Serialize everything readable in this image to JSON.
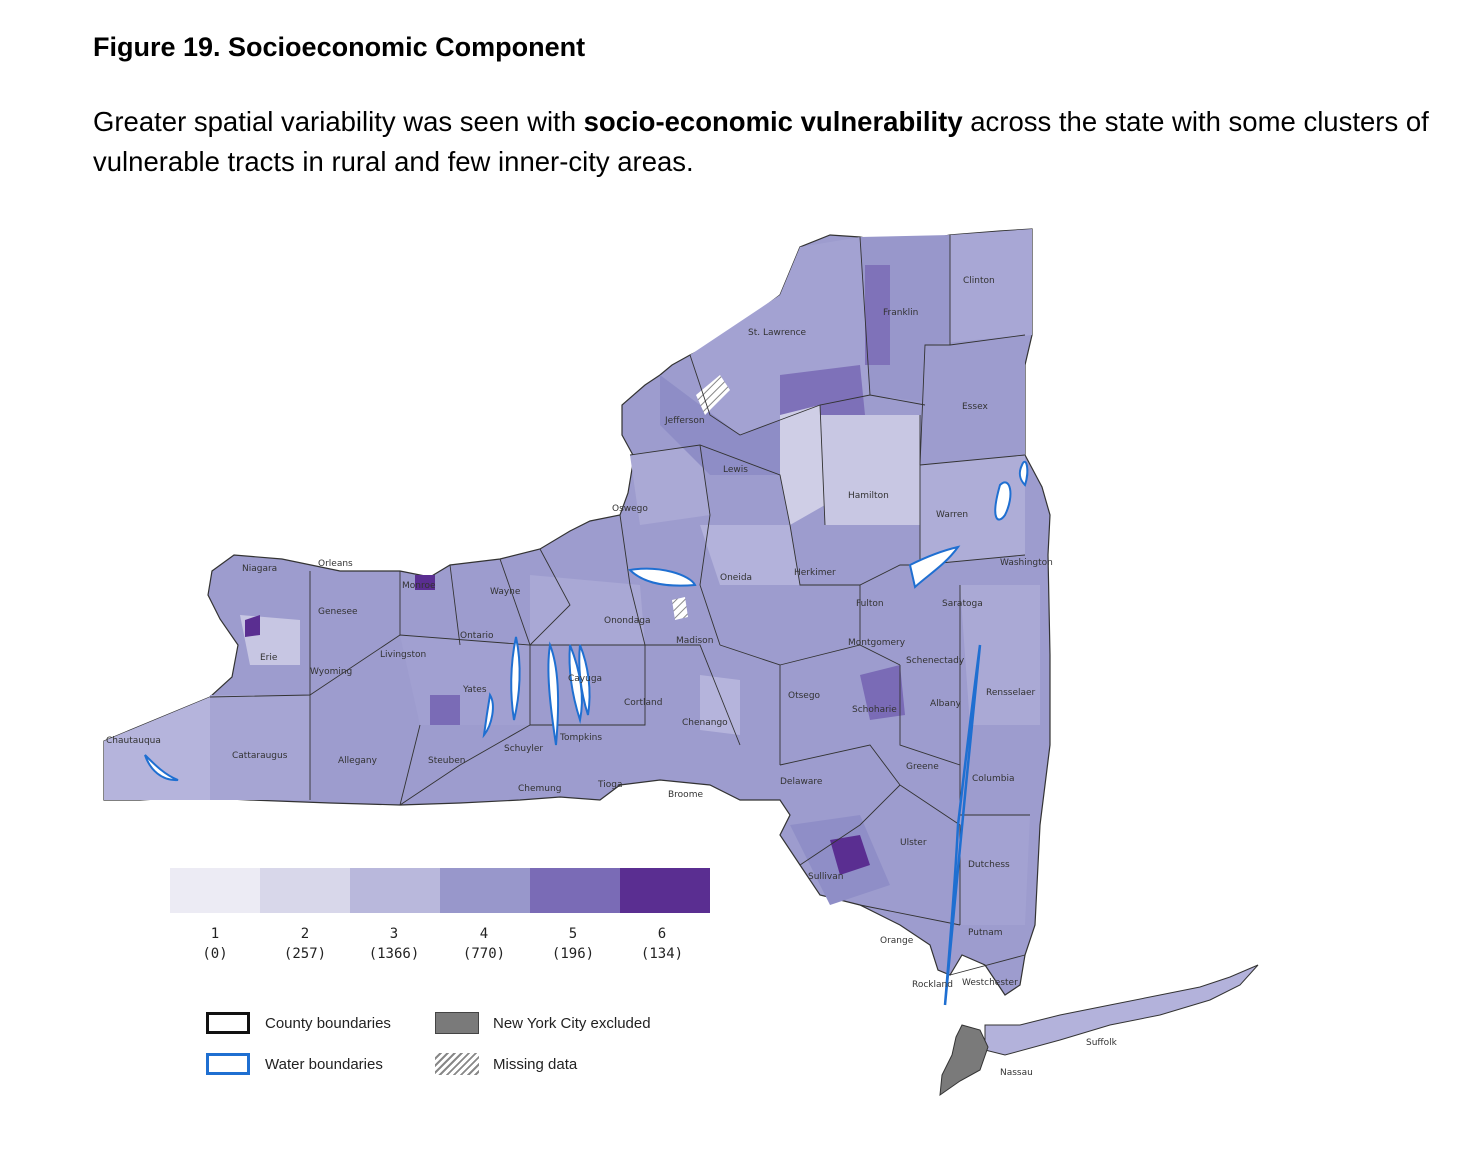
{
  "heading": "Figure 19. Socioeconomic Component",
  "paragraph": {
    "before": "Greater spatial variability was seen with ",
    "bold": "socio-economic vulnerability",
    "after": " across the state with some clusters of vulnerable tracts in rural and few inner-city areas."
  },
  "legend": {
    "classes": [
      {
        "label": "1",
        "count": "(0)",
        "color": "#ecebf4"
      },
      {
        "label": "2",
        "count": "(257)",
        "color": "#d8d7ea"
      },
      {
        "label": "3",
        "count": "(1366)",
        "color": "#b9b8dc"
      },
      {
        "label": "4",
        "count": "(770)",
        "color": "#9897cb"
      },
      {
        "label": "5",
        "count": "(196)",
        "color": "#7a6bb6"
      },
      {
        "label": "6",
        "count": "(134)",
        "color": "#5a2e91"
      }
    ],
    "keys": {
      "county": "County boundaries",
      "water": "Water boundaries",
      "nyc": "New York City excluded",
      "missing": "Missing data"
    }
  },
  "counties": {
    "st_lawrence": "St. Lawrence",
    "franklin": "Franklin",
    "clinton": "Clinton",
    "essex": "Essex",
    "jefferson": "Jefferson",
    "lewis": "Lewis",
    "hamilton": "Hamilton",
    "warren": "Warren",
    "washington": "Washington",
    "oswego": "Oswego",
    "oneida": "Oneida",
    "herkimer": "Herkimer",
    "fulton": "Fulton",
    "saratoga": "Saratoga",
    "niagara": "Niagara",
    "orleans": "Orleans",
    "monroe": "Monroe",
    "wayne": "Wayne",
    "genesee": "Genesee",
    "onondaga": "Onondaga",
    "madison": "Madison",
    "montgomery": "Montgomery",
    "schenectady": "Schenectady",
    "erie": "Erie",
    "wyoming": "Wyoming",
    "livingston": "Livingston",
    "ontario": "Ontario",
    "cayuga": "Cayuga",
    "cortland": "Cortland",
    "otsego": "Otsego",
    "schoharie": "Schoharie",
    "albany": "Albany",
    "rensselaer": "Rensselaer",
    "yates": "Yates",
    "chenango": "Chenango",
    "chautauqua": "Chautauqua",
    "cattaraugus": "Cattaraugus",
    "allegany": "Allegany",
    "steuben": "Steuben",
    "schuyler": "Schuyler",
    "tompkins": "Tompkins",
    "chemung": "Chemung",
    "tioga": "Tioga",
    "broome": "Broome",
    "delaware": "Delaware",
    "greene": "Greene",
    "columbia": "Columbia",
    "ulster": "Ulster",
    "dutchess": "Dutchess",
    "sullivan": "Sullivan",
    "orange": "Orange",
    "putnam": "Putnam",
    "rockland": "Rockland",
    "westchester": "Westchester",
    "suffolk": "Suffolk",
    "nassau": "Nassau"
  }
}
